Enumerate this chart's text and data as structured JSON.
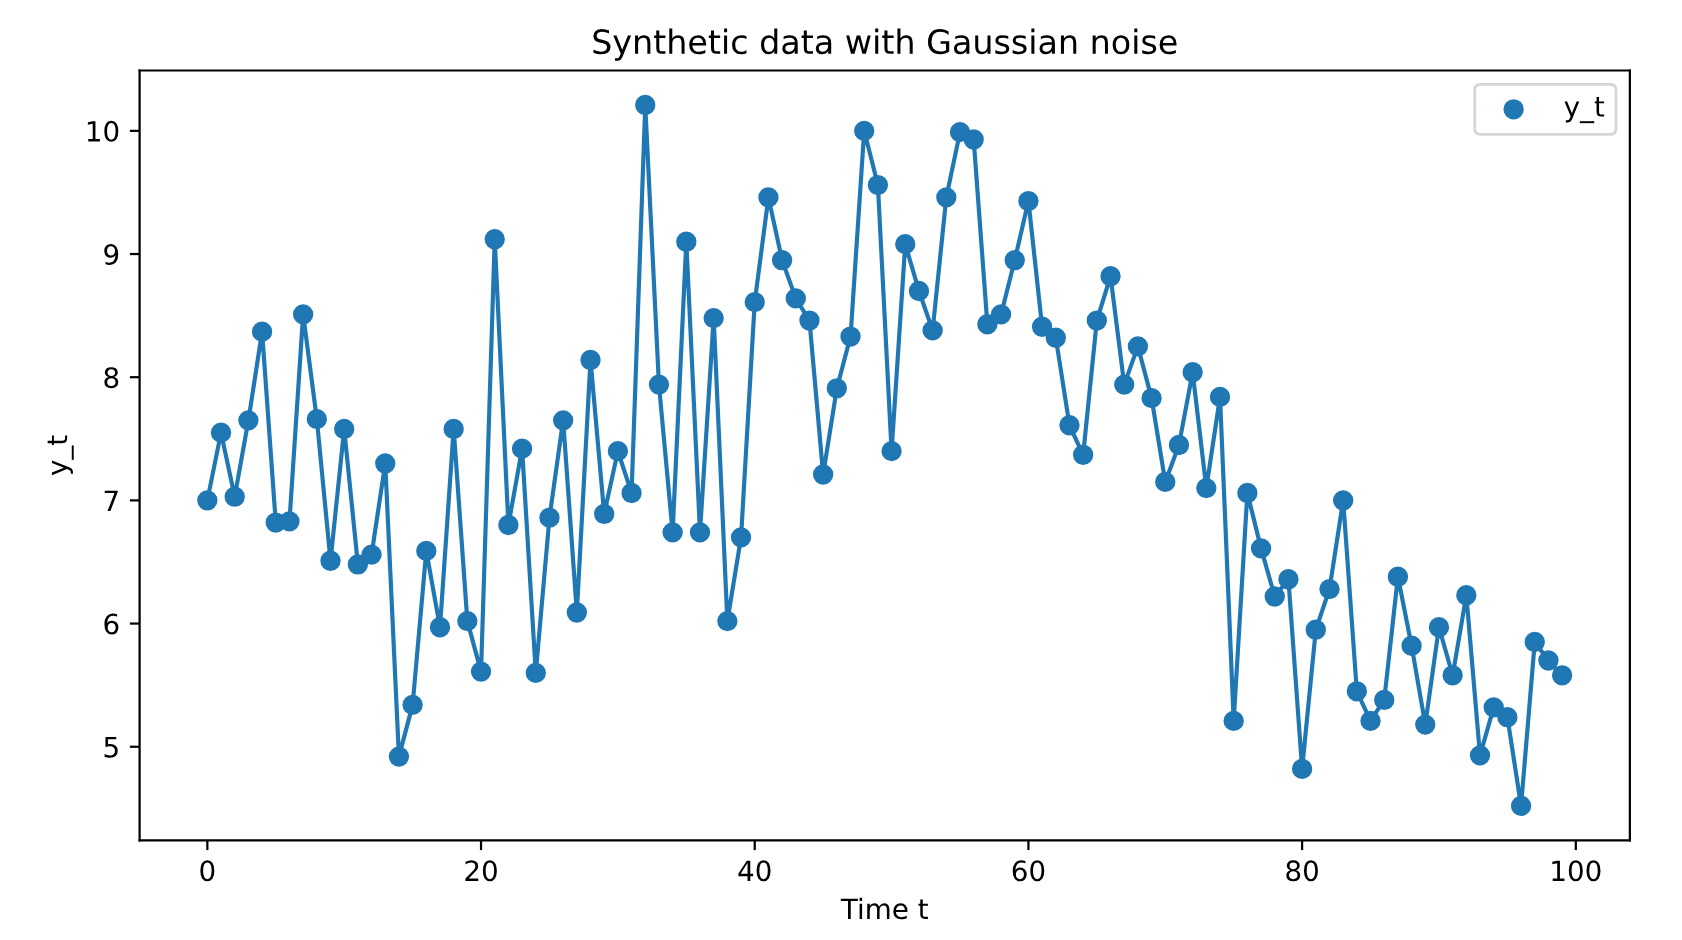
{
  "chart_data": {
    "type": "line",
    "title": "Synthetic data with Gaussian noise",
    "xlabel": "Time t",
    "ylabel": "y_t",
    "x": [
      0,
      1,
      2,
      3,
      4,
      5,
      6,
      7,
      8,
      9,
      10,
      11,
      12,
      13,
      14,
      15,
      16,
      17,
      18,
      19,
      20,
      21,
      22,
      23,
      24,
      25,
      26,
      27,
      28,
      29,
      30,
      31,
      32,
      33,
      34,
      35,
      36,
      37,
      38,
      39,
      40,
      41,
      42,
      43,
      44,
      45,
      46,
      47,
      48,
      49,
      50,
      51,
      52,
      53,
      54,
      55,
      56,
      57,
      58,
      59,
      60,
      61,
      62,
      63,
      64,
      65,
      66,
      67,
      68,
      69,
      70,
      71,
      72,
      73,
      74,
      75,
      76,
      77,
      78,
      79,
      80,
      81,
      82,
      83,
      84,
      85,
      86,
      87,
      88,
      89,
      90,
      91,
      92,
      93,
      94,
      95,
      96,
      97,
      98,
      99
    ],
    "series": [
      {
        "color": "#1f77b4",
        "marker": "none",
        "values": [
          7.0,
          7.55,
          7.03,
          7.65,
          8.37,
          6.82,
          6.83,
          8.51,
          7.66,
          6.51,
          7.58,
          6.48,
          6.56,
          7.3,
          4.92,
          5.34,
          6.59,
          5.97,
          7.58,
          6.02,
          5.61,
          9.12,
          6.8,
          7.42,
          5.6,
          6.86,
          7.65,
          6.09,
          8.14,
          6.89,
          7.4,
          7.06,
          10.21,
          7.94,
          6.74,
          9.1,
          6.74,
          8.48,
          6.02,
          6.7,
          8.61,
          9.46,
          8.95,
          8.64,
          8.46,
          7.21,
          7.91,
          8.33,
          10.0,
          9.56,
          7.4,
          9.08,
          8.7,
          8.38,
          9.46,
          9.99,
          9.93,
          8.43,
          8.51,
          8.95,
          9.43,
          8.41,
          8.32,
          7.61,
          7.37,
          8.46,
          8.82,
          7.94,
          8.25,
          7.83,
          7.15,
          7.45,
          8.04,
          7.1,
          7.84,
          5.21,
          7.06,
          6.61,
          6.22,
          6.36,
          4.82,
          5.95,
          6.28,
          7.0,
          5.45,
          5.21,
          5.38,
          6.38,
          5.82,
          5.18,
          5.97,
          5.58,
          6.23,
          4.93,
          5.32,
          5.24,
          4.52,
          5.85,
          5.7,
          5.58
        ]
      },
      {
        "type": "scatter",
        "name": "y_t",
        "color": "#1f77b4",
        "marker": "circle",
        "values": [
          7.0,
          7.55,
          7.03,
          7.65,
          8.37,
          6.82,
          6.83,
          8.51,
          7.66,
          6.51,
          7.58,
          6.48,
          6.56,
          7.3,
          4.92,
          5.34,
          6.59,
          5.97,
          7.58,
          6.02,
          5.61,
          9.12,
          6.8,
          7.42,
          5.6,
          6.86,
          7.65,
          6.09,
          8.14,
          6.89,
          7.4,
          7.06,
          10.21,
          7.94,
          6.74,
          9.1,
          6.74,
          8.48,
          6.02,
          6.7,
          8.61,
          9.46,
          8.95,
          8.64,
          8.46,
          7.21,
          7.91,
          8.33,
          10.0,
          9.56,
          7.4,
          9.08,
          8.7,
          8.38,
          9.46,
          9.99,
          9.93,
          8.43,
          8.51,
          8.95,
          9.43,
          8.41,
          8.32,
          7.61,
          7.37,
          8.46,
          8.82,
          7.94,
          8.25,
          7.83,
          7.15,
          7.45,
          8.04,
          7.1,
          7.84,
          5.21,
          7.06,
          6.61,
          6.22,
          6.36,
          4.82,
          5.95,
          6.28,
          7.0,
          5.45,
          5.21,
          5.38,
          6.38,
          5.82,
          5.18,
          5.97,
          5.58,
          6.23,
          4.93,
          5.32,
          5.24,
          4.52,
          5.85,
          5.7,
          5.58
        ]
      }
    ],
    "xlim": [
      -4.95,
      103.95
    ],
    "ylim": [
      4.24,
      10.49
    ],
    "xticks": [
      0,
      20,
      40,
      60,
      80,
      100
    ],
    "yticks": [
      5,
      6,
      7,
      8,
      9,
      10
    ],
    "grid": false,
    "legend": "top right"
  }
}
